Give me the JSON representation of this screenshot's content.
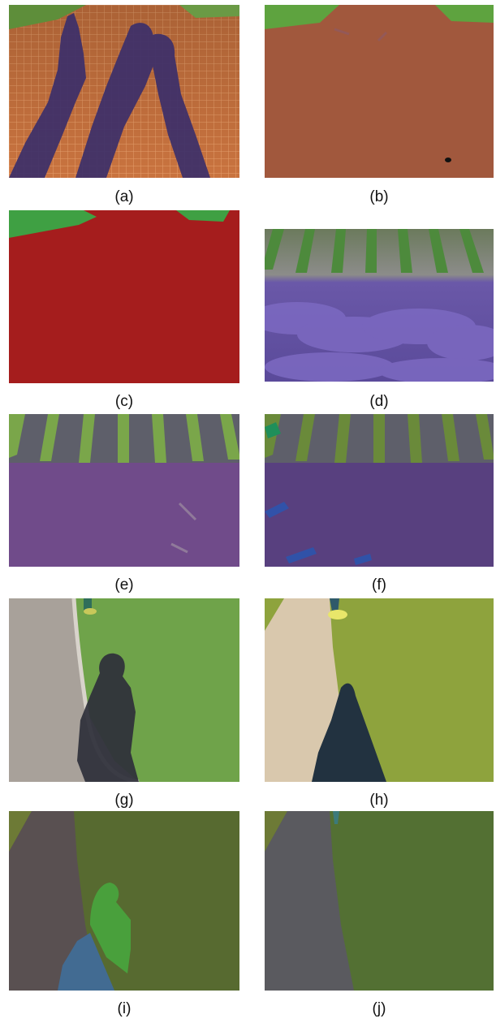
{
  "figure": {
    "panels": [
      {
        "id": "a",
        "caption": "(a)",
        "description": "shadows of people on brick pavement"
      },
      {
        "id": "b",
        "caption": "(b)",
        "description": "segmentation result"
      },
      {
        "id": "c",
        "caption": "(c)",
        "description": "segmentation result"
      },
      {
        "id": "d",
        "caption": "(d)",
        "description": "lavender field"
      },
      {
        "id": "e",
        "caption": "(e)",
        "description": "segmentation result"
      },
      {
        "id": "f",
        "caption": "(f)",
        "description": "segmentation result"
      },
      {
        "id": "g",
        "caption": "(g)",
        "description": "shadow of a person on path and grass"
      },
      {
        "id": "h",
        "caption": "(h)",
        "description": "segmentation result"
      },
      {
        "id": "i",
        "caption": "(i)",
        "description": "segmentation result"
      },
      {
        "id": "j",
        "caption": "(j)",
        "description": "segmentation result"
      }
    ]
  }
}
